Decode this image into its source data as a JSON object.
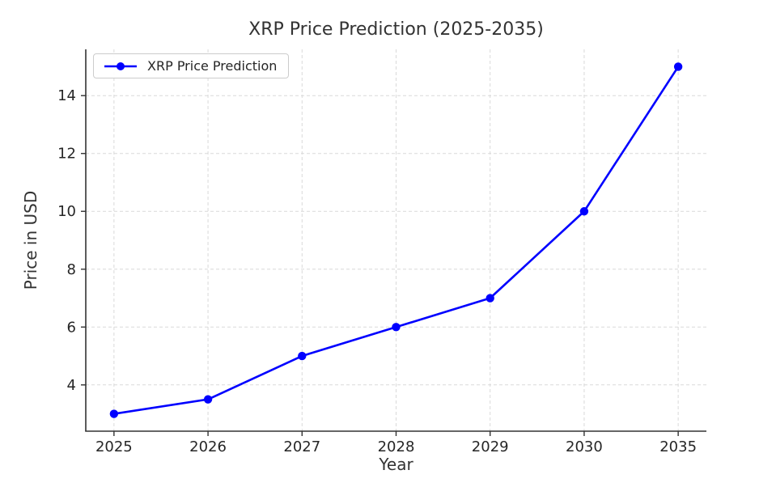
{
  "title": "XRP Price Prediction (2025-2035)",
  "chart_data": {
    "type": "line",
    "title": "XRP Price Prediction (2025-2035)",
    "xlabel": "Year",
    "ylabel": "Price in USD",
    "categories": [
      "2025",
      "2026",
      "2027",
      "2028",
      "2029",
      "2030",
      "2035"
    ],
    "series": [
      {
        "name": "XRP Price Prediction",
        "values": [
          3.0,
          3.5,
          5.0,
          6.0,
          7.0,
          10.0,
          15.0
        ],
        "color": "#0000ff",
        "marker": "circle"
      }
    ],
    "yticks": [
      4,
      6,
      8,
      10,
      12,
      14
    ],
    "ylim": [
      2.4,
      15.6
    ],
    "xlim_index": [
      -0.3,
      6.3
    ],
    "grid": true,
    "grid_style": "dashed",
    "legend_position": "upper left",
    "colors": {
      "line": "#0000ff",
      "grid": "#d9d9d9",
      "spine": "#333333",
      "text": "#333333",
      "tick_text": "#262626",
      "legend_border": "#cccccc",
      "background": "#ffffff"
    }
  }
}
